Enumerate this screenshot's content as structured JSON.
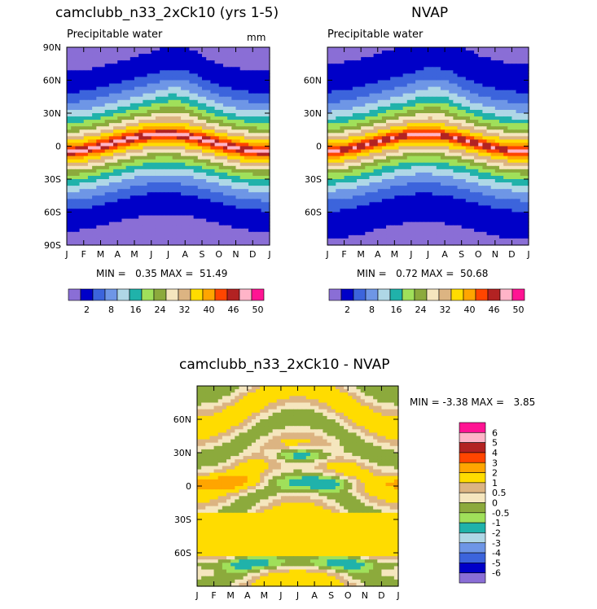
{
  "colors": {
    "abs_fills": [
      "#8a6ed6",
      "#0000c8",
      "#3c64dc",
      "#6e96e6",
      "#afd7e6",
      "#20b2aa",
      "#a0e05a",
      "#8caa3c",
      "#f5e6be",
      "#dcb482",
      "#ffdc00",
      "#ffa500",
      "#ff4500",
      "#b22222",
      "#ffb4c8",
      "#ff1493"
    ],
    "diff_fills": [
      "#8a6ed6",
      "#0000c8",
      "#3c64dc",
      "#6e96e6",
      "#afd7e6",
      "#20b2aa",
      "#a0e05a",
      "#8caa3c",
      "#f5e6be",
      "#dcb482",
      "#ffdc00",
      "#ffa500",
      "#ff4500",
      "#b22222",
      "#ffb4c8",
      "#ff1493"
    ]
  },
  "panel1": {
    "title": "camclubb_n33_2xCk10 (yrs 1-5)",
    "subtitle": "Precipitable water",
    "units": "mm",
    "stats": "MIN =   0.35 MAX =  51.49"
  },
  "panel2": {
    "title": "NVAP",
    "subtitle": "Precipitable water",
    "stats": "MIN =   0.72 MAX =  50.68"
  },
  "panel3": {
    "title": "camclubb_n33_2xCk10 - NVAP",
    "stats": "MIN = -3.38 MAX =   3.85"
  },
  "chart_data": [
    {
      "type": "heatmap",
      "title": "camclubb_n33_2xCk10 (yrs 1-5)",
      "subtitle": "Precipitable water",
      "units": "mm",
      "x": [
        "J",
        "F",
        "M",
        "A",
        "M",
        "J",
        "J",
        "A",
        "S",
        "O",
        "N",
        "D",
        "J"
      ],
      "y_ticks": [
        "90N",
        "60N",
        "30N",
        "0",
        "30S",
        "60S",
        "90S"
      ],
      "ylim": [
        -90,
        90
      ],
      "min": 0.35,
      "max": 51.49,
      "colorbar_labels": [
        "2",
        "8",
        "16",
        "24",
        "32",
        "40",
        "46",
        "50"
      ],
      "field": {
        "eq_max": 50,
        "eq_lat_amp": 8,
        "decay": 0.028,
        "polar_min": 1
      }
    },
    {
      "type": "heatmap",
      "title": "NVAP",
      "subtitle": "Precipitable water",
      "x": [
        "J",
        "F",
        "M",
        "A",
        "M",
        "J",
        "J",
        "A",
        "S",
        "O",
        "N",
        "D",
        "J"
      ],
      "y_ticks": [
        "60N",
        "30N",
        "0",
        "30S",
        "60S"
      ],
      "ylim": [
        -90,
        90
      ],
      "min": 0.72,
      "max": 50.68,
      "colorbar_labels": [
        "2",
        "8",
        "16",
        "24",
        "32",
        "40",
        "46",
        "50"
      ],
      "field": {
        "eq_max": 49,
        "eq_lat_amp": 8,
        "decay": 0.029,
        "polar_min": 1.5
      }
    },
    {
      "type": "heatmap",
      "title": "camclubb_n33_2xCk10 - NVAP",
      "x": [
        "J",
        "F",
        "M",
        "A",
        "M",
        "J",
        "J",
        "A",
        "S",
        "O",
        "N",
        "D",
        "J"
      ],
      "y_ticks": [
        "60N",
        "30N",
        "0",
        "30S",
        "60S"
      ],
      "ylim": [
        -90,
        90
      ],
      "min": -3.38,
      "max": 3.85,
      "colorbar_labels": [
        "6",
        "5",
        "4",
        "3",
        "2",
        "1",
        "0.5",
        "0",
        "-0.5",
        "-1",
        "-2",
        "-3",
        "-4",
        "-5",
        "-6"
      ]
    }
  ]
}
